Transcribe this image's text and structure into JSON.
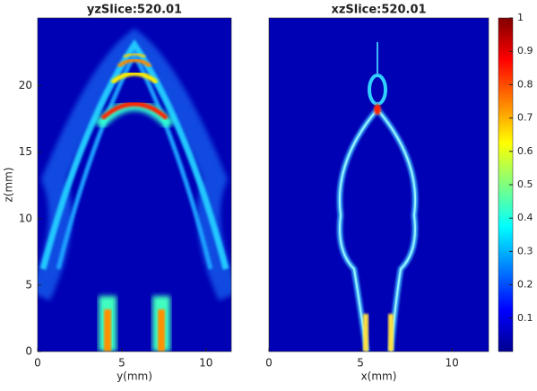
{
  "chart_data": [
    {
      "type": "heatmap",
      "title": "yzSlice:520.01",
      "xlabel": "y(mm)",
      "ylabel": "z(mm)",
      "xlim": [
        0,
        11.5
      ],
      "ylim": [
        0,
        25.1
      ],
      "xticks": [
        0,
        5,
        10
      ],
      "yticks": [
        0,
        5,
        10,
        15,
        20
      ]
    },
    {
      "type": "heatmap",
      "title": "xzSlice:520.01",
      "xlabel": "x(mm)",
      "xlim": [
        0,
        12
      ],
      "ylim": [
        0,
        25.1
      ],
      "xticks": [
        0,
        5,
        10
      ],
      "colormap": "jet",
      "clim": [
        0,
        1
      ],
      "cticks": [
        0.1,
        0.2,
        0.3,
        0.4,
        0.5,
        0.6,
        0.7,
        0.8,
        0.9,
        1
      ]
    }
  ]
}
